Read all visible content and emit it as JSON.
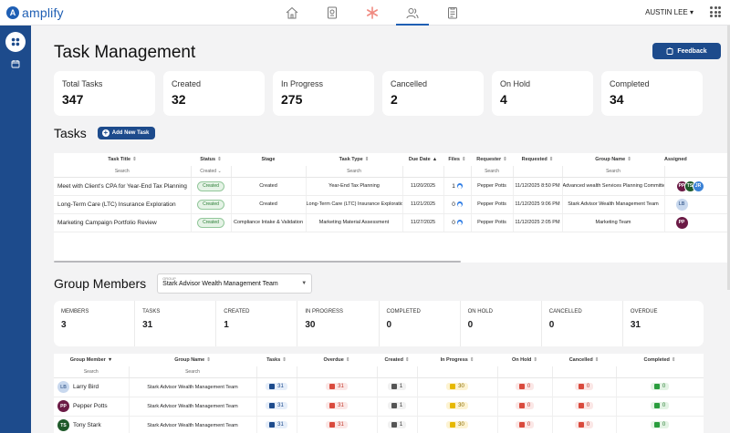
{
  "brand": {
    "name": "amplify",
    "mark": "A"
  },
  "topnav": [
    {
      "icon": "home-icon",
      "active": false
    },
    {
      "icon": "document-icon",
      "active": false
    },
    {
      "icon": "asterisk-icon",
      "active": false
    },
    {
      "icon": "users-icon",
      "active": true
    },
    {
      "icon": "clipboard-icon",
      "active": false
    }
  ],
  "user": {
    "name": "AUSTIN LEE",
    "caret": "▾"
  },
  "page": {
    "title": "Task Management",
    "feedback_label": "Feedback"
  },
  "stats": [
    {
      "label": "Total Tasks",
      "value": "347"
    },
    {
      "label": "Created",
      "value": "32"
    },
    {
      "label": "In Progress",
      "value": "275"
    },
    {
      "label": "Cancelled",
      "value": "2"
    },
    {
      "label": "On Hold",
      "value": "4"
    },
    {
      "label": "Completed",
      "value": "34"
    }
  ],
  "tasks": {
    "heading": "Tasks",
    "add_label": "Add New Task",
    "columns": [
      "Task Title",
      "Status",
      "Stage",
      "Task Type",
      "Due Date",
      "Files",
      "Requester",
      "Requested",
      "Group Name",
      "Assigned"
    ],
    "filters": {
      "title": "Search",
      "status": "Created",
      "task_type": "Search",
      "requester": "Search",
      "group_name": "Search"
    },
    "rows": [
      {
        "title": "Meet with Client's CPA for Year-End Tax Planning",
        "status": "Created",
        "stage": "Created",
        "type": "Year-End Tax Planning",
        "due": "11/20/2025",
        "files": "1",
        "requester": "Pepper Potts",
        "requested": "11/12/2025 8:50 PM",
        "group": "Advanced wealth Services Planning Committee",
        "assigned": [
          "PP",
          "TS",
          "JR"
        ]
      },
      {
        "title": "Long-Term Care (LTC) Insurance Exploration",
        "status": "Created",
        "stage": "Created",
        "type": "Long-Term Care (LTC) Insurance Exploration",
        "due": "11/21/2025",
        "files": "0",
        "requester": "Pepper Potts",
        "requested": "11/12/2025 9:06 PM",
        "group": "Stark Advisor Wealth Management Team",
        "assigned": [
          "LB"
        ]
      },
      {
        "title": "Marketing Campaign Portfolio Review",
        "status": "Created",
        "stage": "Compliance Intake & Validation",
        "type": "Marketing Material Assessment",
        "due": "11/27/2025",
        "files": "0",
        "requester": "Pepper Potts",
        "requested": "11/12/2025 2:05 PM",
        "group": "Marketing Team",
        "assigned": [
          "PP"
        ]
      }
    ]
  },
  "group": {
    "heading": "Group Members",
    "select_caption": "GROUP",
    "select_value": "Stark Advisor Wealth Management Team",
    "stats": [
      {
        "label": "MEMBERS",
        "value": "3"
      },
      {
        "label": "TASKS",
        "value": "31"
      },
      {
        "label": "CREATED",
        "value": "1"
      },
      {
        "label": "IN PROGRESS",
        "value": "30"
      },
      {
        "label": "COMPLETED",
        "value": "0"
      },
      {
        "label": "ON HOLD",
        "value": "0"
      },
      {
        "label": "CANCELLED",
        "value": "0"
      },
      {
        "label": "OVERDUE",
        "value": "31"
      }
    ],
    "columns": [
      "Group Member",
      "Group Name",
      "Tasks",
      "Overdue",
      "Created",
      "In Progress",
      "On Hold",
      "Cancelled",
      "Completed"
    ],
    "filters": {
      "member": "Search",
      "group": "Search"
    },
    "rows": [
      {
        "initials": "LB",
        "name": "Larry Bird",
        "group": "Stark Advisor Wealth Management Team",
        "tasks": "31",
        "overdue": "31",
        "created": "1",
        "in_progress": "30",
        "on_hold": "0",
        "cancelled": "0",
        "completed": "0"
      },
      {
        "initials": "PP",
        "name": "Pepper Potts",
        "group": "Stark Advisor Wealth Management Team",
        "tasks": "31",
        "overdue": "31",
        "created": "1",
        "in_progress": "30",
        "on_hold": "0",
        "cancelled": "0",
        "completed": "0"
      },
      {
        "initials": "TS",
        "name": "Tony Stark",
        "group": "Stark Advisor Wealth Management Team",
        "tasks": "31",
        "overdue": "31",
        "created": "1",
        "in_progress": "30",
        "on_hold": "0",
        "cancelled": "0",
        "completed": "0"
      }
    ]
  }
}
